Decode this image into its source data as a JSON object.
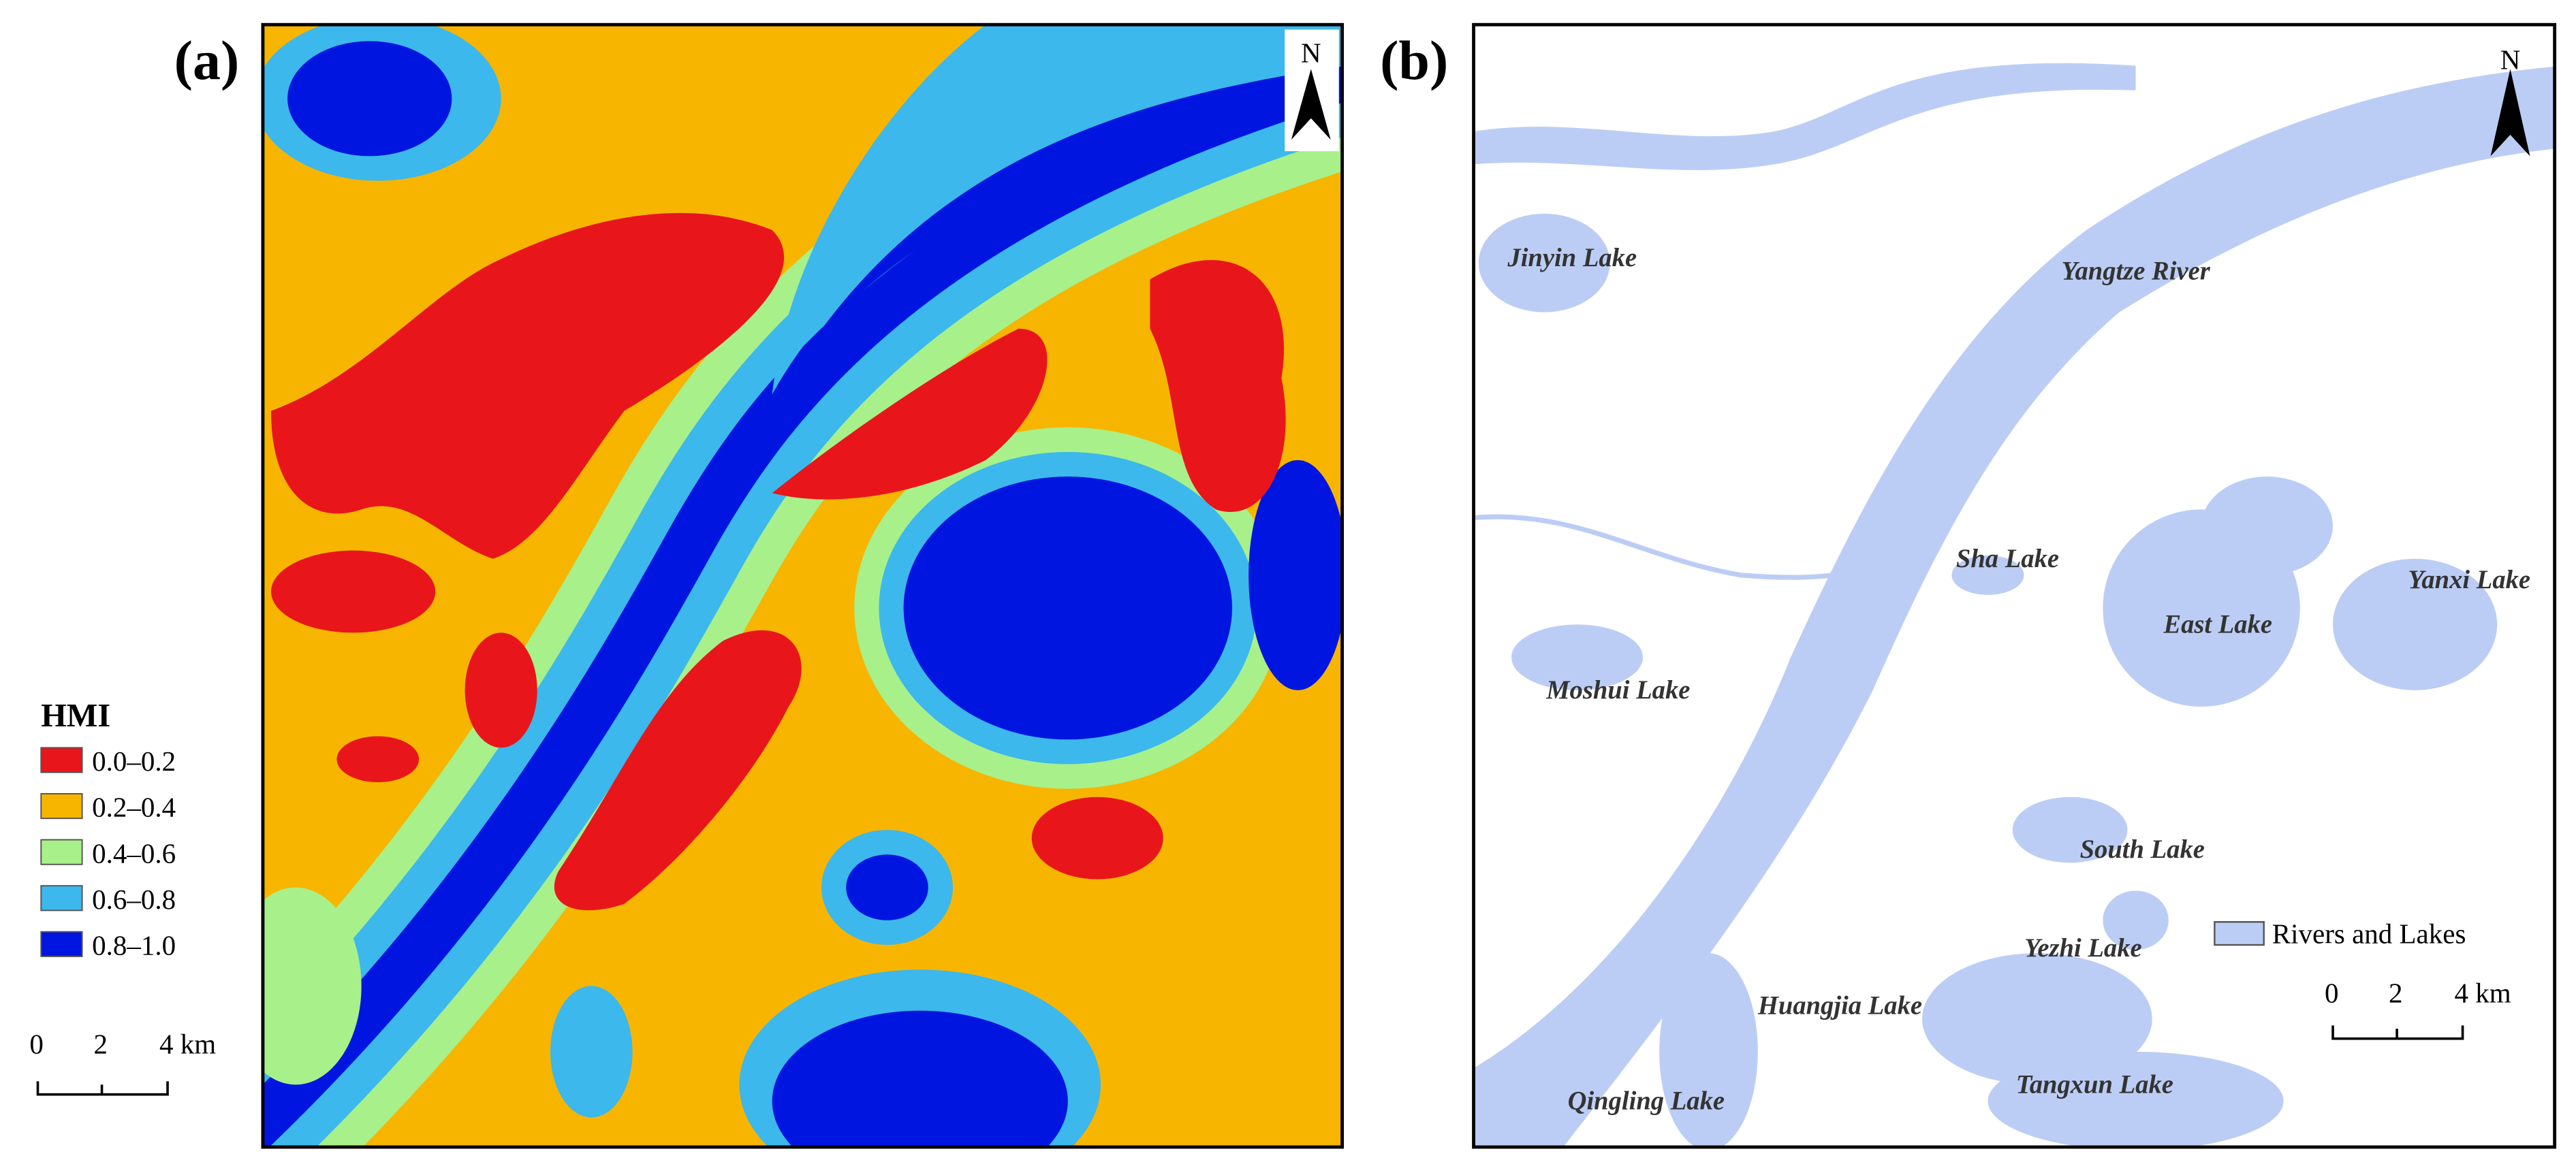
{
  "panels": [
    {
      "label": "(a)",
      "north": "N",
      "legend": {
        "title": "HMI",
        "items": [
          {
            "label": "0.0–0.2",
            "color": "#e8161b"
          },
          {
            "label": "0.2–0.4",
            "color": "#f7b500"
          },
          {
            "label": "0.4–0.6",
            "color": "#a8f08a"
          },
          {
            "label": "0.6–0.8",
            "color": "#3cb8ec"
          },
          {
            "label": "0.8–1.0",
            "color": "#0016e0"
          }
        ]
      },
      "scale_bar": [
        "0",
        "2",
        "4 km"
      ]
    },
    {
      "label": "(b)",
      "north": "N",
      "river": "Yangtze River",
      "lakes": [
        "Jinyin Lake",
        "Sha Lake",
        "Yanxi Lake",
        "East Lake",
        "Moshui Lake",
        "South Lake",
        "Yezhi Lake",
        "Huangjia Lake",
        "Tangxun Lake",
        "Qingling Lake"
      ],
      "legend": {
        "label": "Rivers and Lakes",
        "color": "#bccdf5"
      },
      "scale_bar": [
        "0",
        "2",
        "4 km"
      ]
    }
  ]
}
